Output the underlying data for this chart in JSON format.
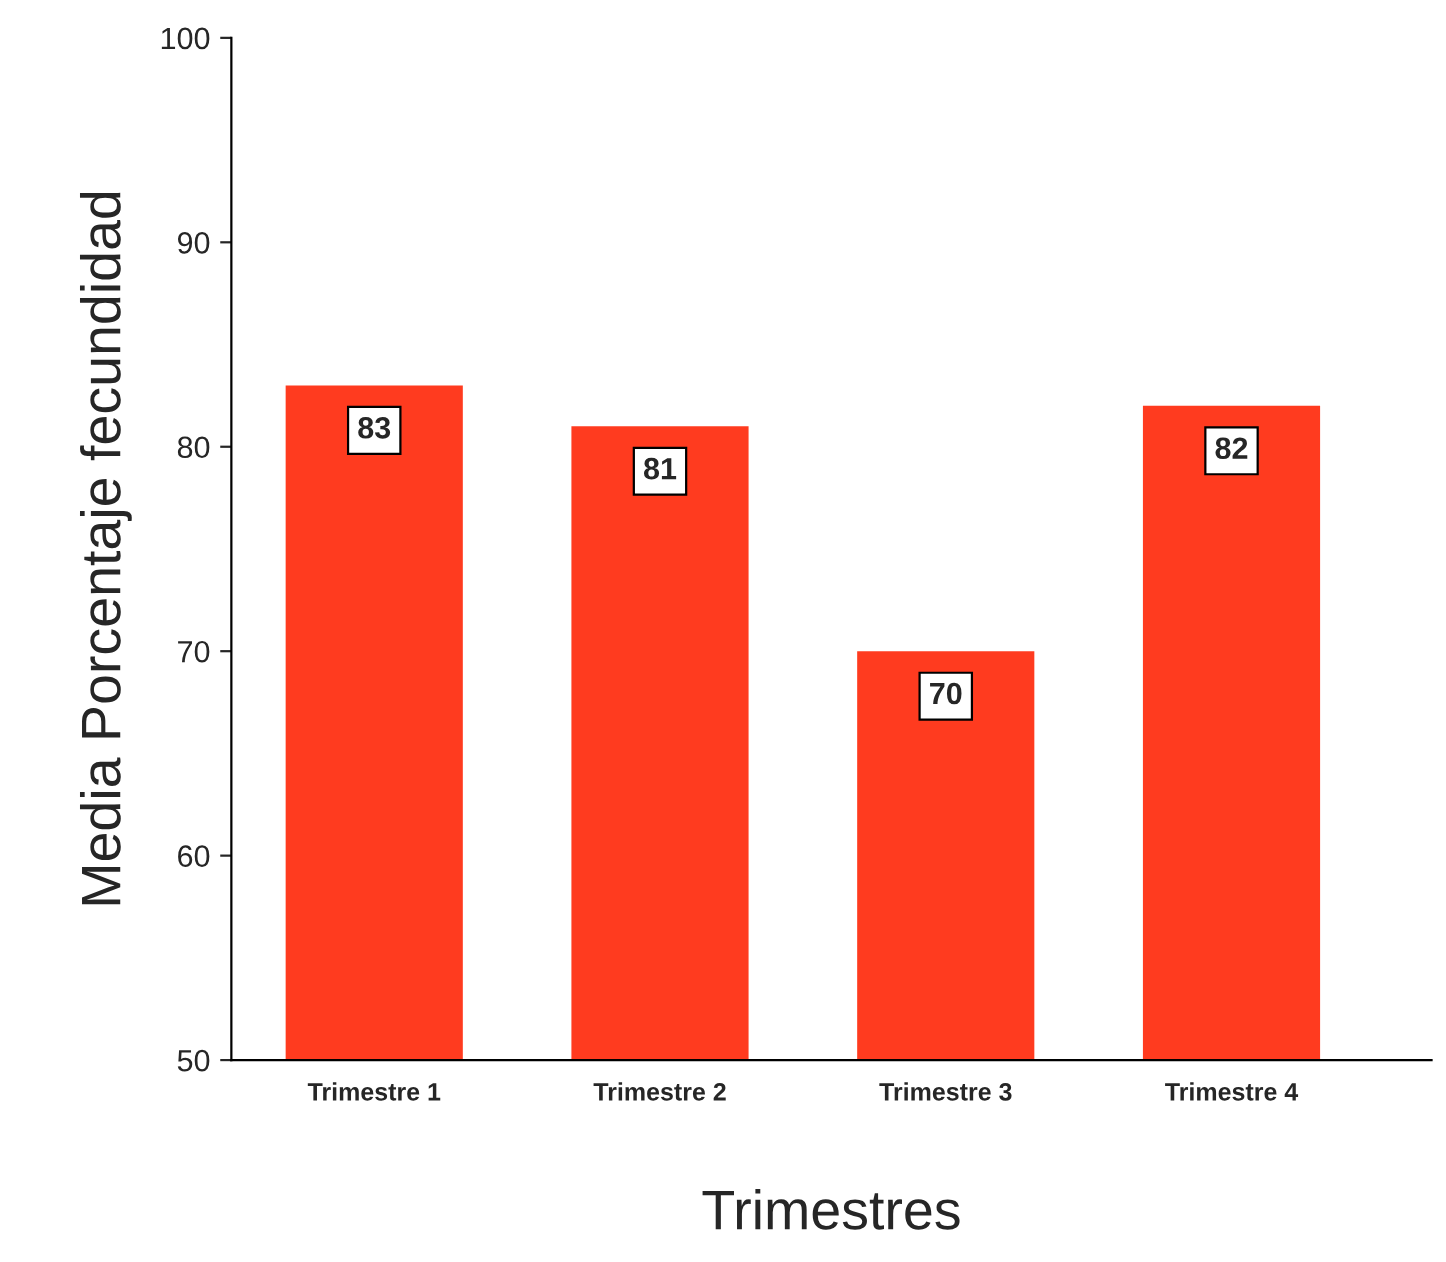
{
  "chart_data": {
    "type": "bar",
    "xlabel": "Trimestres",
    "ylabel": "Media Porcentaje fecundidad",
    "categories": [
      "Trimestre 1",
      "Trimestre 2",
      "Trimestre 3",
      "Trimestre 4"
    ],
    "values": [
      83,
      81,
      70,
      82
    ],
    "color": "#ff3b1f",
    "ylim": [
      50,
      100
    ],
    "yticks": [
      50,
      60,
      70,
      80,
      90,
      100
    ],
    "grid": false,
    "data_labels": true
  }
}
